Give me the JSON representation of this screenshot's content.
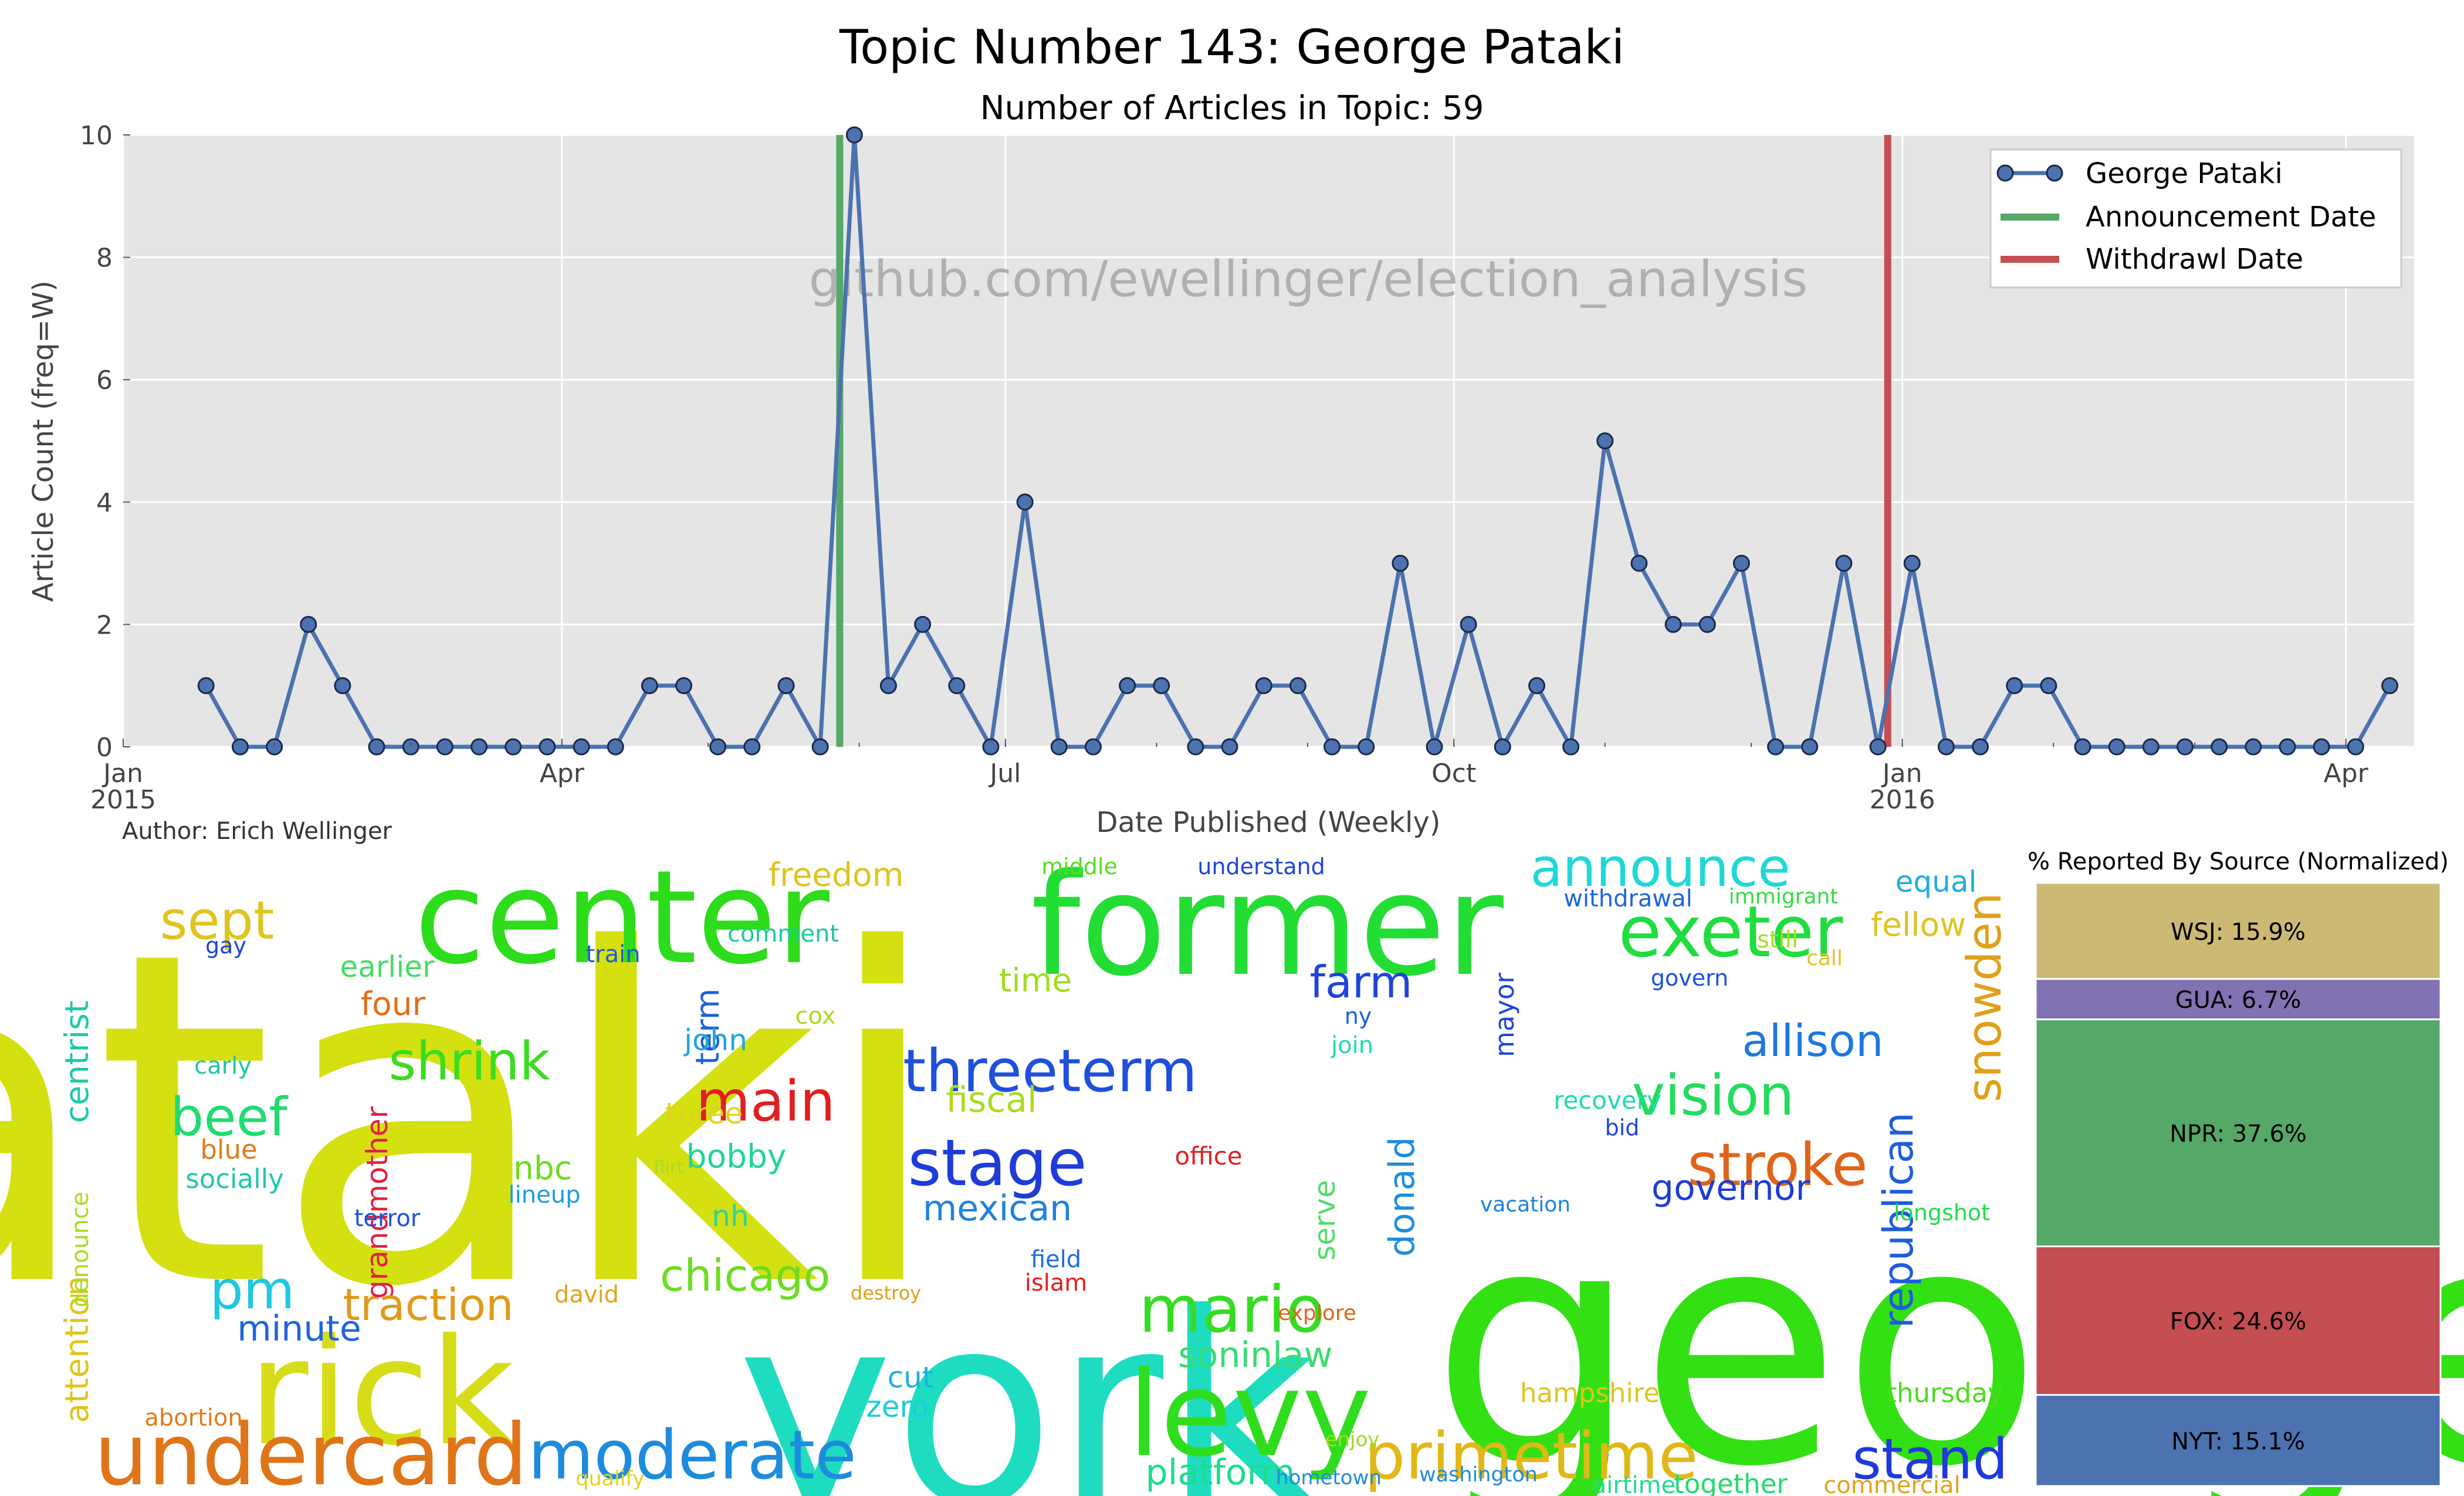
{
  "title": "Topic Number 143: George Pataki",
  "subtitle": "Number of Articles in Topic: 59",
  "watermark": "github.com/ewellinger/election_analysis",
  "author": "Author: Erich Wellinger",
  "chart_data": [
    {
      "type": "line",
      "xlabel": "Date Published (Weekly)",
      "ylabel": "Article Count (freq=W)",
      "x_tick_labels": [
        "Jan\n2015",
        "Apr",
        "Jul",
        "Oct",
        "Jan\n2016",
        "Apr"
      ],
      "x_tick_dates": [
        "2015-01-01",
        "2015-04-01",
        "2015-07-01",
        "2015-10-01",
        "2016-01-01",
        "2016-04-01"
      ],
      "xlim": [
        "2015-01-01",
        "2016-04-15"
      ],
      "ylim": [
        0,
        10
      ],
      "y_ticks": [
        0,
        2,
        4,
        6,
        8,
        10
      ],
      "grid": true,
      "legend_position": "top-right",
      "series": [
        {
          "name": "George Pataki",
          "color": "#4c72b0",
          "x": [
            "2015-01-18",
            "2015-01-25",
            "2015-02-01",
            "2015-02-08",
            "2015-02-15",
            "2015-02-22",
            "2015-03-01",
            "2015-03-08",
            "2015-03-15",
            "2015-03-22",
            "2015-03-29",
            "2015-04-05",
            "2015-04-12",
            "2015-04-19",
            "2015-04-26",
            "2015-05-03",
            "2015-05-10",
            "2015-05-17",
            "2015-05-24",
            "2015-05-31",
            "2015-06-07",
            "2015-06-14",
            "2015-06-21",
            "2015-06-28",
            "2015-07-05",
            "2015-07-12",
            "2015-07-19",
            "2015-07-26",
            "2015-08-02",
            "2015-08-09",
            "2015-08-16",
            "2015-08-23",
            "2015-08-30",
            "2015-09-06",
            "2015-09-13",
            "2015-09-20",
            "2015-09-27",
            "2015-10-04",
            "2015-10-11",
            "2015-10-18",
            "2015-10-25",
            "2015-11-01",
            "2015-11-08",
            "2015-11-15",
            "2015-11-22",
            "2015-11-29",
            "2015-12-06",
            "2015-12-13",
            "2015-12-20",
            "2015-12-27",
            "2016-01-03",
            "2016-01-10",
            "2016-01-17",
            "2016-01-24",
            "2016-01-31",
            "2016-02-07",
            "2016-02-14",
            "2016-02-21",
            "2016-02-28",
            "2016-03-06",
            "2016-03-13",
            "2016-03-20",
            "2016-03-27",
            "2016-04-03",
            "2016-04-10"
          ],
          "y": [
            1,
            0,
            0,
            2,
            1,
            0,
            0,
            0,
            0,
            0,
            0,
            0,
            0,
            1,
            1,
            0,
            0,
            1,
            0,
            10,
            1,
            2,
            1,
            0,
            4,
            0,
            0,
            1,
            1,
            0,
            0,
            1,
            1,
            0,
            0,
            3,
            0,
            2,
            0,
            1,
            0,
            5,
            3,
            2,
            2,
            3,
            0,
            0,
            3,
            0,
            3,
            0,
            0,
            1,
            1,
            0,
            0,
            0,
            0,
            0,
            0,
            0,
            0,
            0,
            1
          ]
        }
      ],
      "vlines": [
        {
          "name": "Announcement Date",
          "date": "2015-05-28",
          "color": "#55a868"
        },
        {
          "name": "Withdrawl Date",
          "date": "2015-12-29",
          "color": "#c44e52"
        }
      ]
    },
    {
      "type": "bar",
      "title": "% Reported By Source (Normalized)",
      "stacked": true,
      "segments": [
        {
          "label": "NYT: 15.1%",
          "source": "NYT",
          "value": 15.1,
          "color": "#4c72b0"
        },
        {
          "label": "FOX: 24.6%",
          "source": "FOX",
          "value": 24.6,
          "color": "#c44e52"
        },
        {
          "label": "NPR: 37.6%",
          "source": "NPR",
          "value": 37.6,
          "color": "#55a868"
        },
        {
          "label": "GUA: 6.7%",
          "source": "GUA",
          "value": 6.7,
          "color": "#8172b2"
        },
        {
          "label": "WSJ: 15.9%",
          "source": "WSJ",
          "value": 15.9,
          "color": "#ccb974"
        }
      ]
    }
  ],
  "wordcloud": {
    "words": [
      {
        "text": "pataki",
        "color": "#d4e010"
      },
      {
        "text": "george",
        "color": "#33e014"
      },
      {
        "text": "york",
        "color": "#1edcc0"
      },
      {
        "text": "former",
        "color": "#22dd33"
      },
      {
        "text": "center",
        "color": "#2ddc1a"
      },
      {
        "text": "rick",
        "color": "#d6dd18"
      },
      {
        "text": "levy",
        "color": "#30dd1e"
      },
      {
        "text": "undercard",
        "color": "#e07418"
      },
      {
        "text": "moderate",
        "color": "#1e8cdc"
      },
      {
        "text": "primetime",
        "color": "#e0b818"
      },
      {
        "text": "threeterm",
        "color": "#1e50dc"
      },
      {
        "text": "mario",
        "color": "#36dc24"
      },
      {
        "text": "stand",
        "color": "#1e3ad8"
      },
      {
        "text": "exeter",
        "color": "#20dc40"
      },
      {
        "text": "announce",
        "color": "#1ed8d8"
      },
      {
        "text": "stroke",
        "color": "#e06418"
      },
      {
        "text": "vision",
        "color": "#22dc5c"
      },
      {
        "text": "sept",
        "color": "#e0c41e"
      },
      {
        "text": "shrink",
        "color": "#3cdc20"
      },
      {
        "text": "beef",
        "color": "#20dc70"
      },
      {
        "text": "main",
        "color": "#e02020"
      },
      {
        "text": "stage",
        "color": "#1e3cd8"
      },
      {
        "text": "traction",
        "color": "#e09a18"
      },
      {
        "text": "chicago",
        "color": "#6cdc20"
      },
      {
        "text": "pm",
        "color": "#1ec8e0"
      },
      {
        "text": "snowden",
        "color": "#e0a018"
      },
      {
        "text": "allison",
        "color": "#1e78dc"
      },
      {
        "text": "republican",
        "color": "#1e5cdc"
      },
      {
        "text": "farm",
        "color": "#1e44d8"
      },
      {
        "text": "minute",
        "color": "#1e64dc"
      },
      {
        "text": "mexican",
        "color": "#1e82dc"
      },
      {
        "text": "fiscal",
        "color": "#aadc1e"
      },
      {
        "text": "soninlaw",
        "color": "#38dc70"
      },
      {
        "text": "platform",
        "color": "#1edc8c"
      },
      {
        "text": "governor",
        "color": "#1e3cd8"
      },
      {
        "text": "donald",
        "color": "#1e8cdc"
      },
      {
        "text": "bobby",
        "color": "#20d49c"
      },
      {
        "text": "cut",
        "color": "#1eb0dc"
      },
      {
        "text": "zero",
        "color": "#1ecadc"
      },
      {
        "text": "freedom",
        "color": "#e0c41e"
      },
      {
        "text": "time",
        "color": "#a0dc1e"
      },
      {
        "text": "term",
        "color": "#1e60dc"
      },
      {
        "text": "four",
        "color": "#e06e18"
      },
      {
        "text": "nbc",
        "color": "#6cdc1e"
      },
      {
        "text": "earlier",
        "color": "#44dc62"
      },
      {
        "text": "three",
        "color": "#e0d41e"
      },
      {
        "text": "nh",
        "color": "#2cd4a0"
      },
      {
        "text": "serve",
        "color": "#56dc66"
      },
      {
        "text": "hampshire",
        "color": "#e0c41e"
      },
      {
        "text": "thursday",
        "color": "#4adc1e"
      },
      {
        "text": "together",
        "color": "#1edc6c"
      },
      {
        "text": "airtime",
        "color": "#1edc8c"
      },
      {
        "text": "commercial",
        "color": "#e0a418"
      },
      {
        "text": "fellow",
        "color": "#e0c41e"
      },
      {
        "text": "equal",
        "color": "#1eaedc"
      },
      {
        "text": "still",
        "color": "#aadc1e"
      },
      {
        "text": "longshot",
        "color": "#20dc4c"
      },
      {
        "text": "centrist",
        "color": "#1ec8a8"
      },
      {
        "text": "attention",
        "color": "#e0c41e"
      },
      {
        "text": "denounce",
        "color": "#a8dc1e"
      },
      {
        "text": "grandmother",
        "color": "#e02040"
      },
      {
        "text": "field",
        "color": "#1e6cdc"
      },
      {
        "text": "islam",
        "color": "#e02020"
      },
      {
        "text": "mayor",
        "color": "#1e46d8"
      },
      {
        "text": "john",
        "color": "#1ea8dc"
      },
      {
        "text": "terror",
        "color": "#1e50dc"
      },
      {
        "text": "lineup",
        "color": "#1e9cdc"
      },
      {
        "text": "abortion",
        "color": "#e07c18"
      },
      {
        "text": "david",
        "color": "#e0a418"
      },
      {
        "text": "blue",
        "color": "#e07c18"
      },
      {
        "text": "socially",
        "color": "#1ec8a8"
      },
      {
        "text": "carly",
        "color": "#20c4a8"
      },
      {
        "text": "middle",
        "color": "#58dc20"
      },
      {
        "text": "understand",
        "color": "#1e46d8"
      },
      {
        "text": "withdrawal",
        "color": "#1e64dc"
      },
      {
        "text": "immigrant",
        "color": "#34dc42"
      },
      {
        "text": "recovery",
        "color": "#1edcaa"
      },
      {
        "text": "bid",
        "color": "#1e48d8"
      },
      {
        "text": "office",
        "color": "#e02020"
      },
      {
        "text": "train",
        "color": "#1e5ad8"
      },
      {
        "text": "comment",
        "color": "#1ec8a0"
      },
      {
        "text": "cox",
        "color": "#a8dc1e"
      },
      {
        "text": "join",
        "color": "#1edcb4"
      },
      {
        "text": "ny",
        "color": "#1e60dc"
      },
      {
        "text": "govern",
        "color": "#1e50dc"
      },
      {
        "text": "call",
        "color": "#e0c41e"
      },
      {
        "text": "vacation",
        "color": "#1e82dc"
      },
      {
        "text": "destroy",
        "color": "#e0a018"
      },
      {
        "text": "enjoy",
        "color": "#a0dc1e"
      },
      {
        "text": "qualify",
        "color": "#e0d41e"
      },
      {
        "text": "hometown",
        "color": "#1e8cdc"
      },
      {
        "text": "washington",
        "color": "#1e8cdc"
      },
      {
        "text": "explore",
        "color": "#e06418"
      },
      {
        "text": "gay",
        "color": "#1e46d8"
      },
      {
        "text": "flirt",
        "color": "#aadc1e"
      }
    ]
  }
}
